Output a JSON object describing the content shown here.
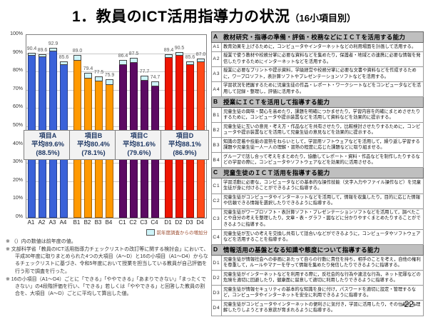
{
  "title": {
    "main": "1．教員のICT活用指導力の状況",
    "sub": "（16小項目別）"
  },
  "page_number": "-22-",
  "chart_data": {
    "type": "bar",
    "title": "教員のICT活用指導力（16小項目別）",
    "xlabel": "",
    "ylabel": "",
    "ylim": [
      0,
      100
    ],
    "y_tick_step": 10,
    "y_tick_suffix": "%",
    "grid": true,
    "legend_label": "前年度調査からの増加分",
    "legend_swatch_color": "#CFF5FA",
    "categories": [
      "A1",
      "A2",
      "A3",
      "A4",
      "B1",
      "B2",
      "B3",
      "B4",
      "C1",
      "C2",
      "C3",
      "C4",
      "D1",
      "D2",
      "D3",
      "D4"
    ],
    "values": [
      90.4,
      89.6,
      92.9,
      85.6,
      89.0,
      79.4,
      77.5,
      75.9,
      86.4,
      87.5,
      77.7,
      74.7,
      89.4,
      90.5,
      85.6,
      87.0
    ],
    "increase_from_prev_year": [
      1.1,
      1.1,
      1.1,
      1.1,
      2.3,
      2.3,
      2.3,
      2.3,
      2.0,
      2.0,
      2.0,
      2.0,
      1.2,
      1.2,
      1.2,
      1.2
    ],
    "bar_colors": [
      "#3A62D9",
      "#3A62D9",
      "#3A62D9",
      "#3A62D9",
      "#FF9900",
      "#FF9900",
      "#FF9900",
      "#FF9900",
      "#5C0A63",
      "#5C0A63",
      "#5C0A63",
      "#5C0A63",
      "#EE1502",
      "#EE1502",
      "#EE1502",
      "#FF4A19"
    ],
    "groups": [
      {
        "name": "項目A",
        "avg_label": "平均89.6%",
        "prev_label": "(88.5%)",
        "color": "#3A62D9"
      },
      {
        "name": "項目B",
        "avg_label": "平均80.4%",
        "prev_label": "(78.1%)",
        "color": "#FF9900"
      },
      {
        "name": "項目C",
        "avg_label": "平均81.6%",
        "prev_label": "(79.6%)",
        "color": "#5C0A63"
      },
      {
        "name": "項目D",
        "avg_label": "平均88.1%",
        "prev_label": "(86.9%)",
        "color": "#EE1502"
      }
    ]
  },
  "notes": [
    "※ （）内の数値は前年度の値。",
    "※ 文部科学省「教員のICT活用指導力チェックリストの改訂等に関する検討会」において、平成30年度に取りまとめられた4つの大項目（A～D）と16の小項目（A1～D4）からなるチェックリストに基づき、令和5年度において授業を担当している教員が自己評価を行う形で調査を行った。",
    "※ 16の小項目（A1～D4）ごとに「できる」「ややできる」「あまりできない」「まったくできない」の4段階評価を行い、「できる」若しくは「ややできる」と回答した教員の割合を、大項目（A～D）ごとに平均して算出した値。"
  ],
  "table": {
    "sections": [
      {
        "code": "A",
        "title": "教材研究・指導の準備・評価・校務などにＩＣＴを活用する能力",
        "items": [
          {
            "code": "A1",
            "text": "教育効果を上げるために，コンピュータやインターネットなどの利用場面を計画して活用する。"
          },
          {
            "code": "A2",
            "text": "授業で使う教材や校務分掌に必要な資料などを集めたり，保護者・地域との連携に必要な情報を発信したりするためにインターネットなどを活用する。"
          },
          {
            "code": "A3",
            "text": "授業に必要なプリントや提示資料，学級経営や校務分掌に必要な文書や資料などを作成するために，ワープロソフト，表計算ソフトやプレゼンテーションソフトなどを活用する。"
          },
          {
            "code": "A4",
            "text": "学習状況を把握するために児童生徒の作品・レポート・ワークシートなどをコンピュータなどを活用して記録・整理し，評価に活用する。"
          }
        ]
      },
      {
        "code": "B",
        "title": "授業にＩＣＴを活用して指導する能力",
        "items": [
          {
            "code": "B1",
            "text": "児童生徒の興味・関心を高めたり，課題を明確につかませたり，学習内容を的確にまとめさせたりするために，コンピュータや提示装置などを活用して資料などを効果的に提示する。"
          },
          {
            "code": "B2",
            "text": "児童生徒に互いの意見・考え方・作品などを共有させたり，比較検討させたりするために，コンピュータや提示装置などを活用して児童生徒の意見などを効果的に提示する。"
          },
          {
            "code": "B3",
            "text": "知識の定着や技能の習熟をねらいとして，学習用ソフトウェアなどを活用して，繰り返し学習する課題や児童生徒一人一人の理解・習熟の程度に応じた課題などに取り組ませる。"
          },
          {
            "code": "B4",
            "text": "グループで話し合って考えをまとめたり，協働してレポート・資料・作品などを制作したりするなどの学習の際に，コンピュータやソフトウェアなどを効果的に活用させる。"
          }
        ]
      },
      {
        "code": "C",
        "title": "児童生徒のＩＣＴ活用を指導する能力",
        "items": [
          {
            "code": "C1",
            "text": "学習活動に必要な，コンピュータなどの基本的な操作技能（文字入力やファイル操作など）を児童生徒が身に付けることができるように指導する。"
          },
          {
            "code": "C2",
            "text": "児童生徒がコンピュータやインターネットなどを活用して，情報を収集したり，目的に応じた情報や信頼できる情報を選択したりできるように指導する。"
          },
          {
            "code": "C3",
            "text": "児童生徒がワープロソフト・表計算ソフト・プレゼンテーションソフトなどを活用して，調べたことや自分の考えを整理したり，文章・表・グラフ・図などに分かりやすくまとめたりすることができるように指導する。"
          },
          {
            "code": "C4",
            "text": "児童生徒が互いの考えを交換し共有して話合いなどができるように，コンピュータやソフトウェアなどを活用することを指導する。"
          }
        ]
      },
      {
        "code": "D",
        "title": "情報活用の基盤となる知識や態度について指導する能力",
        "items": [
          {
            "code": "D1",
            "text": "児童生徒が情報社会への参画にあたって自らの行動に責任を持ち，相手のことを考え，自他の権利を尊重して，ルールやマナーを守って情報を集めたり発信したりできるように指導する。"
          },
          {
            "code": "D2",
            "text": "児童生徒がインターネットなどを利用する際に，反社会的な行為や違法な行為，ネット犯罪などの危険を適切に回避したり，健康面に留意して適切に利用したりできるように指導する。"
          },
          {
            "code": "D3",
            "text": "児童生徒が情報セキュリティの基本的な知識を身に付け，パスワードを適切に設定・管理するなど，コンピュータやインターネットを安全に利用できるように指導する。"
          },
          {
            "code": "D4",
            "text": "児童生徒がコンピュータやインターネットの便利さに気付き，学習に活用したり，その仕組みを理解したりしようとする意欲が育まれるように指導する。"
          }
        ]
      }
    ]
  }
}
